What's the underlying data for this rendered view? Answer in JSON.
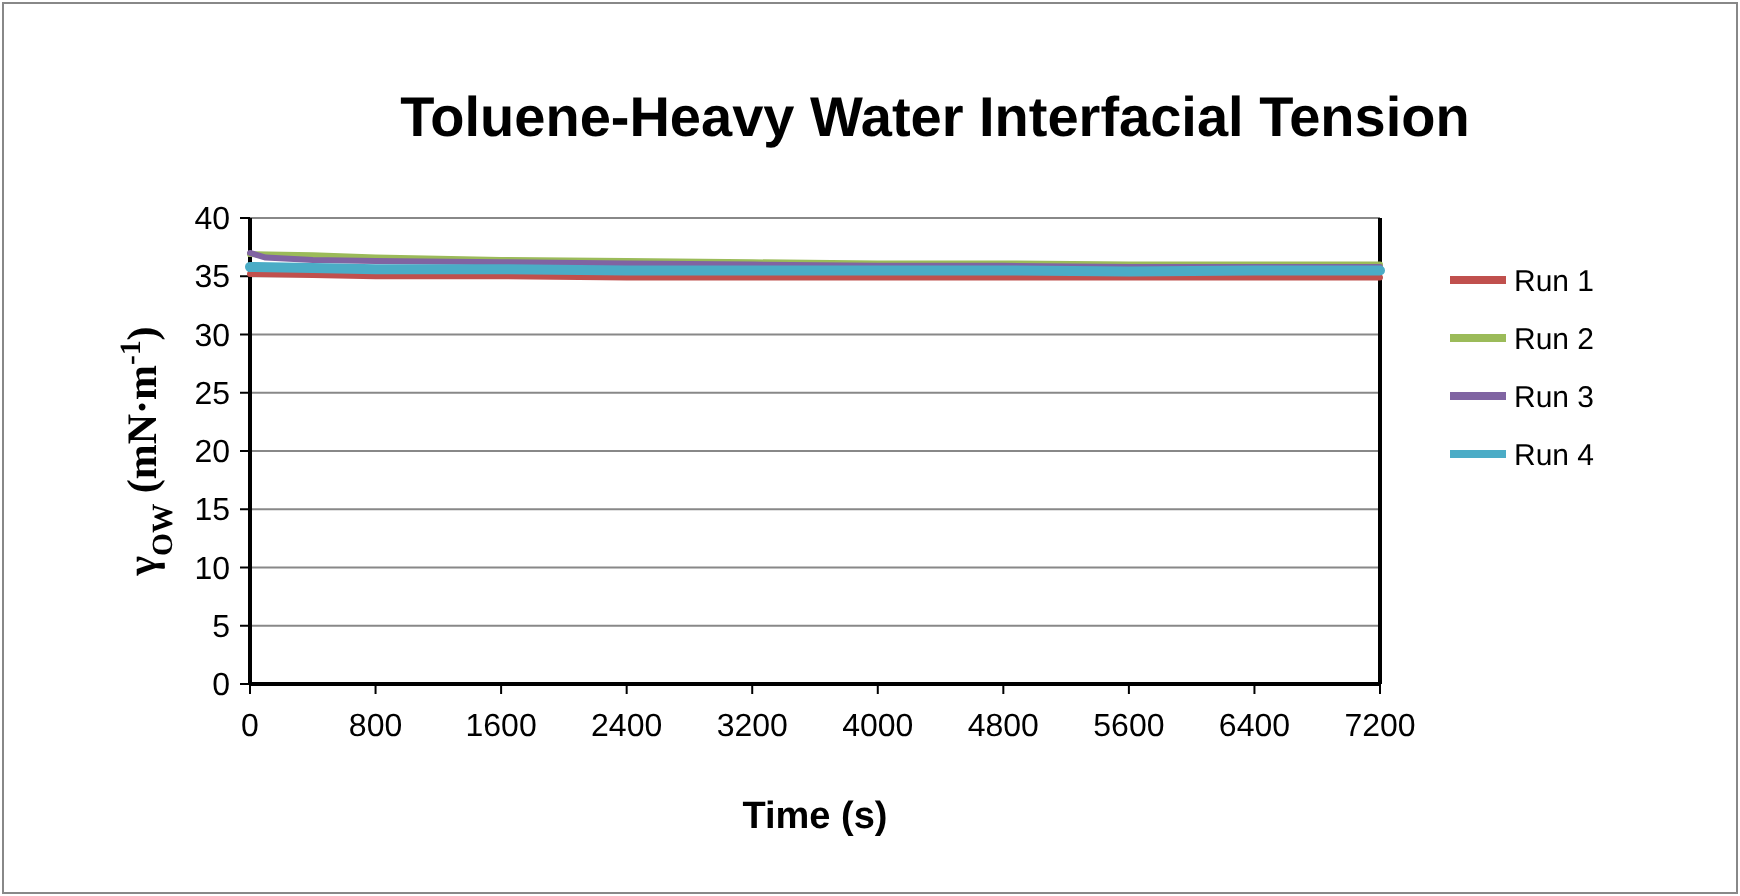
{
  "chart_data": {
    "type": "line",
    "title": "Toluene-Heavy Water Interfacial Tension",
    "xlabel": "Time (s)",
    "ylabel": "γ$_{OW}$ (mN·m$^{-1}$)",
    "xlim": [
      0,
      7200
    ],
    "xticks": [
      0,
      800,
      1600,
      2400,
      3200,
      4000,
      4800,
      5600,
      6400,
      7200
    ],
    "ylim": [
      0,
      40
    ],
    "yticks": [
      0,
      5,
      10,
      15,
      20,
      25,
      30,
      35,
      40
    ],
    "grid": "y",
    "legend": "right",
    "line_style": "solid",
    "marker": "none",
    "series": [
      {
        "name": "Run 1",
        "color": "#c0504d",
        "x": [
          0,
          400,
          800,
          1600,
          2400,
          3200,
          4000,
          4800,
          5600,
          6400,
          7200
        ],
        "values": [
          35.2,
          35.1,
          35.0,
          35.0,
          34.9,
          34.9,
          34.9,
          34.9,
          34.9,
          34.9,
          34.9
        ]
      },
      {
        "name": "Run 2",
        "color": "#9bbb59",
        "x": [
          0,
          400,
          800,
          1600,
          2400,
          3200,
          4000,
          4800,
          5600,
          6400,
          7200
        ],
        "values": [
          36.9,
          36.8,
          36.6,
          36.4,
          36.3,
          36.2,
          36.1,
          36.1,
          36.0,
          36.0,
          36.0
        ]
      },
      {
        "name": "Run 3",
        "color": "#8064a2",
        "x": [
          0,
          100,
          400,
          800,
          1600,
          2400,
          3200,
          4000,
          4800,
          5600,
          6400,
          7200
        ],
        "values": [
          37.0,
          36.6,
          36.4,
          36.3,
          36.2,
          36.1,
          36.0,
          35.9,
          35.9,
          35.8,
          35.8,
          35.8
        ]
      },
      {
        "name": "Run 4",
        "color": "#4bacc6",
        "x": [
          0,
          400,
          800,
          1600,
          2400,
          3200,
          4000,
          4800,
          5600,
          6400,
          7200
        ],
        "values": [
          35.8,
          35.7,
          35.6,
          35.6,
          35.5,
          35.5,
          35.5,
          35.5,
          35.4,
          35.5,
          35.5
        ]
      }
    ]
  }
}
